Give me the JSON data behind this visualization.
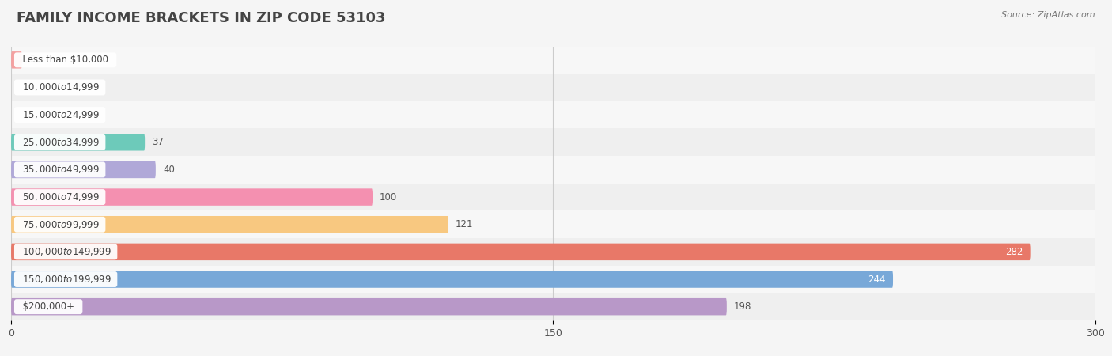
{
  "title": "Family Income Brackets in Zip Code 53103",
  "title_upper": "FAMILY INCOME BRACKETS IN ZIP CODE 53103",
  "source": "Source: ZipAtlas.com",
  "categories": [
    "Less than $10,000",
    "$10,000 to $14,999",
    "$15,000 to $24,999",
    "$25,000 to $34,999",
    "$35,000 to $49,999",
    "$50,000 to $74,999",
    "$75,000 to $99,999",
    "$100,000 to $149,999",
    "$150,000 to $199,999",
    "$200,000+"
  ],
  "values": [
    3,
    0,
    0,
    37,
    40,
    100,
    121,
    282,
    244,
    198
  ],
  "bar_colors": [
    "#F4A0A0",
    "#A8C4E0",
    "#C8A8D8",
    "#6DCABA",
    "#B0A8D8",
    "#F490B0",
    "#F8C880",
    "#E87868",
    "#78A8D8",
    "#B898C8"
  ],
  "xlim": [
    0,
    300
  ],
  "xticks": [
    0,
    150,
    300
  ],
  "bar_height": 0.62,
  "background_color": "#f5f5f5",
  "title_fontsize": 13,
  "label_fontsize": 8.5,
  "value_fontsize": 8.5,
  "value_inside_threshold": 200
}
